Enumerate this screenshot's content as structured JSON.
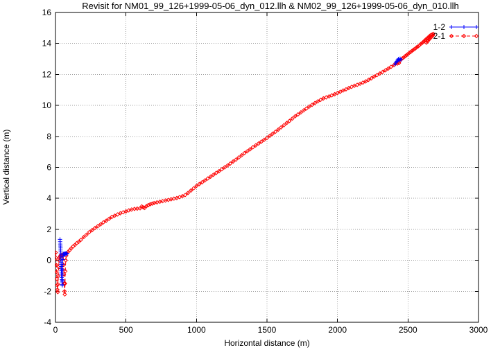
{
  "window": {
    "background": "#ffffff"
  },
  "chart_data": {
    "type": "line",
    "title": "Revisit for NM01_99_126+1999-05-06_dyn_012.llh & NM02_99_126+1999-05-06_dyn_010.llh",
    "xlabel": "Horizontal distance (m)",
    "ylabel": "Vertical distance (m)",
    "xlim": [
      0,
      3000
    ],
    "ylim": [
      -4,
      16
    ],
    "x_ticks": [
      0,
      500,
      1000,
      1500,
      2000,
      2500,
      3000
    ],
    "y_ticks": [
      -4,
      -2,
      0,
      2,
      4,
      6,
      8,
      10,
      12,
      14,
      16
    ],
    "grid": true,
    "grid_color": "#9e9e9e",
    "axis_color": "#000000",
    "legend_position": "top-right-inside",
    "series": [
      {
        "name": "1-2",
        "color": "#0000ff",
        "marker": "plus",
        "line": "solid",
        "points": [
          [
            32,
            1.35
          ],
          [
            33,
            1.2
          ],
          [
            34,
            1.05
          ],
          [
            35,
            0.92
          ],
          [
            36,
            0.8
          ],
          [
            36,
            0.66
          ],
          [
            37,
            0.54
          ],
          [
            38,
            0.42
          ],
          [
            38,
            0.28
          ],
          [
            39,
            0.15
          ],
          [
            39,
            0.02
          ],
          [
            40,
            -0.12
          ],
          [
            40,
            -0.26
          ],
          [
            41,
            -0.4
          ],
          [
            41,
            -0.54
          ],
          [
            42,
            -0.68
          ],
          [
            43,
            -0.82
          ],
          [
            43,
            -0.95
          ],
          [
            44,
            -1.1
          ],
          [
            45,
            -1.25
          ],
          [
            46,
            -1.4
          ],
          [
            47,
            -1.55
          ],
          [
            48,
            -1.62
          ],
          [
            49,
            -1.3
          ],
          [
            49,
            -0.95
          ],
          [
            50,
            -0.6
          ],
          [
            51,
            -0.25
          ],
          [
            52,
            0.05
          ],
          [
            53,
            0.25
          ],
          [
            55,
            0.38
          ],
          [
            58,
            0.42
          ],
          [
            62,
            0.44
          ],
          [
            66,
            0.4
          ],
          [
            70,
            0.43
          ],
          [
            74,
            0.45
          ],
          [
            78,
            0.41
          ],
          [
            82,
            0.44
          ],
          null,
          [
            2408,
            12.66
          ],
          [
            2414,
            12.75
          ],
          [
            2420,
            12.84
          ],
          [
            2426,
            12.92
          ],
          [
            2432,
            13.0
          ],
          [
            2438,
            12.9
          ],
          [
            2444,
            13.02
          ],
          [
            2450,
            12.95
          ]
        ]
      },
      {
        "name": "2-1",
        "color": "#ff0000",
        "marker": "diamond",
        "line": "dashed",
        "points": [
          [
            2,
            0.5
          ],
          [
            4,
            0.15
          ],
          [
            6,
            -0.3
          ],
          [
            8,
            -0.75
          ],
          [
            10,
            -1.2
          ],
          [
            12,
            -1.6
          ],
          [
            14,
            -1.9
          ],
          [
            16,
            -2.05
          ],
          [
            18,
            -1.55
          ],
          [
            20,
            -1.0
          ],
          [
            22,
            -0.45
          ],
          [
            25,
            0.0
          ],
          [
            28,
            0.15
          ],
          [
            32,
            0.25
          ],
          [
            36,
            0.3
          ],
          [
            40,
            0.35
          ],
          [
            45,
            0.3
          ],
          [
            50,
            0.35
          ],
          [
            55,
            0.4
          ],
          [
            58,
            -0.3
          ],
          [
            60,
            -0.9
          ],
          [
            62,
            -1.5
          ],
          [
            64,
            -2.0
          ],
          [
            66,
            -2.2
          ],
          [
            68,
            -1.5
          ],
          [
            70,
            -0.7
          ],
          [
            73,
            0.0
          ],
          [
            76,
            0.3
          ],
          [
            80,
            0.45
          ],
          [
            90,
            0.55
          ],
          [
            100,
            0.65
          ],
          [
            112,
            0.78
          ],
          [
            125,
            0.9
          ],
          [
            138,
            1.0
          ],
          [
            150,
            1.1
          ],
          [
            165,
            1.2
          ],
          [
            180,
            1.32
          ],
          [
            200,
            1.5
          ],
          [
            220,
            1.65
          ],
          [
            240,
            1.82
          ],
          [
            260,
            1.95
          ],
          [
            280,
            2.08
          ],
          [
            300,
            2.2
          ],
          [
            320,
            2.32
          ],
          [
            340,
            2.45
          ],
          [
            360,
            2.56
          ],
          [
            380,
            2.68
          ],
          [
            400,
            2.8
          ],
          [
            420,
            2.88
          ],
          [
            440,
            2.96
          ],
          [
            460,
            3.04
          ],
          [
            480,
            3.1
          ],
          [
            500,
            3.16
          ],
          [
            520,
            3.22
          ],
          [
            540,
            3.28
          ],
          [
            560,
            3.32
          ],
          [
            580,
            3.34
          ],
          [
            600,
            3.36
          ],
          [
            612,
            3.48
          ],
          [
            622,
            3.42
          ],
          [
            632,
            3.38
          ],
          [
            645,
            3.5
          ],
          [
            658,
            3.56
          ],
          [
            672,
            3.62
          ],
          [
            686,
            3.66
          ],
          [
            700,
            3.7
          ],
          [
            720,
            3.74
          ],
          [
            740,
            3.78
          ],
          [
            760,
            3.82
          ],
          [
            780,
            3.86
          ],
          [
            800,
            3.9
          ],
          [
            820,
            3.94
          ],
          [
            840,
            3.98
          ],
          [
            860,
            4.02
          ],
          [
            880,
            4.08
          ],
          [
            900,
            4.14
          ],
          [
            920,
            4.22
          ],
          [
            940,
            4.35
          ],
          [
            960,
            4.5
          ],
          [
            980,
            4.65
          ],
          [
            1000,
            4.8
          ],
          [
            1020,
            4.92
          ],
          [
            1040,
            5.04
          ],
          [
            1060,
            5.16
          ],
          [
            1080,
            5.28
          ],
          [
            1100,
            5.4
          ],
          [
            1120,
            5.52
          ],
          [
            1140,
            5.64
          ],
          [
            1160,
            5.76
          ],
          [
            1180,
            5.88
          ],
          [
            1200,
            6.0
          ],
          [
            1220,
            6.12
          ],
          [
            1240,
            6.25
          ],
          [
            1260,
            6.38
          ],
          [
            1280,
            6.5
          ],
          [
            1300,
            6.64
          ],
          [
            1320,
            6.78
          ],
          [
            1340,
            6.92
          ],
          [
            1360,
            7.04
          ],
          [
            1380,
            7.17
          ],
          [
            1400,
            7.3
          ],
          [
            1420,
            7.42
          ],
          [
            1440,
            7.54
          ],
          [
            1460,
            7.66
          ],
          [
            1480,
            7.78
          ],
          [
            1500,
            7.9
          ],
          [
            1520,
            8.04
          ],
          [
            1540,
            8.17
          ],
          [
            1560,
            8.3
          ],
          [
            1580,
            8.44
          ],
          [
            1600,
            8.58
          ],
          [
            1620,
            8.72
          ],
          [
            1640,
            8.87
          ],
          [
            1660,
            9.0
          ],
          [
            1680,
            9.15
          ],
          [
            1700,
            9.3
          ],
          [
            1720,
            9.42
          ],
          [
            1740,
            9.55
          ],
          [
            1760,
            9.68
          ],
          [
            1780,
            9.8
          ],
          [
            1800,
            9.93
          ],
          [
            1820,
            10.04
          ],
          [
            1840,
            10.15
          ],
          [
            1860,
            10.26
          ],
          [
            1880,
            10.36
          ],
          [
            1900,
            10.45
          ],
          [
            1920,
            10.52
          ],
          [
            1940,
            10.58
          ],
          [
            1960,
            10.65
          ],
          [
            1980,
            10.72
          ],
          [
            2000,
            10.8
          ],
          [
            2020,
            10.88
          ],
          [
            2040,
            10.96
          ],
          [
            2060,
            11.04
          ],
          [
            2080,
            11.12
          ],
          [
            2100,
            11.2
          ],
          [
            2120,
            11.27
          ],
          [
            2140,
            11.33
          ],
          [
            2160,
            11.4
          ],
          [
            2180,
            11.47
          ],
          [
            2200,
            11.55
          ],
          [
            2220,
            11.65
          ],
          [
            2240,
            11.75
          ],
          [
            2260,
            11.86
          ],
          [
            2280,
            11.96
          ],
          [
            2300,
            12.06
          ],
          [
            2320,
            12.16
          ],
          [
            2340,
            12.27
          ],
          [
            2360,
            12.38
          ],
          [
            2380,
            12.49
          ],
          [
            2400,
            12.6
          ],
          [
            2410,
            12.68
          ],
          [
            2418,
            12.76
          ],
          [
            2424,
            12.7
          ],
          [
            2430,
            12.82
          ],
          [
            2436,
            12.74
          ],
          [
            2442,
            12.88
          ],
          [
            2450,
            12.96
          ],
          [
            2460,
            13.04
          ],
          [
            2470,
            13.1
          ],
          [
            2480,
            13.18
          ],
          [
            2490,
            13.25
          ],
          [
            2500,
            13.32
          ],
          [
            2510,
            13.4
          ],
          [
            2520,
            13.46
          ],
          [
            2530,
            13.53
          ],
          [
            2540,
            13.6
          ],
          [
            2550,
            13.66
          ],
          [
            2560,
            13.74
          ],
          [
            2570,
            13.8
          ],
          [
            2580,
            13.88
          ],
          [
            2590,
            13.96
          ],
          [
            2600,
            14.03
          ],
          [
            2608,
            14.1
          ],
          [
            2616,
            14.17
          ],
          [
            2624,
            14.24
          ],
          [
            2632,
            14.3
          ],
          [
            2640,
            14.37
          ],
          [
            2648,
            14.44
          ],
          [
            2656,
            14.5
          ],
          [
            2664,
            14.55
          ],
          [
            2672,
            14.58
          ],
          [
            2680,
            14.62
          ],
          [
            2676,
            14.52
          ],
          [
            2668,
            14.44
          ],
          [
            2660,
            14.36
          ],
          [
            2652,
            14.28
          ],
          [
            2644,
            14.2
          ],
          [
            2638,
            14.12
          ],
          [
            2630,
            14.05
          ]
        ]
      }
    ]
  }
}
